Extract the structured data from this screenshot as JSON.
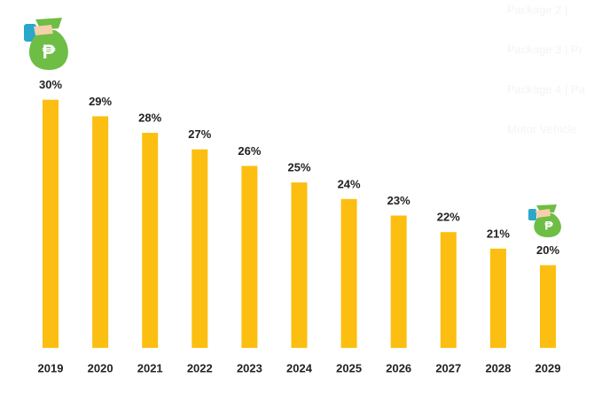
{
  "chart_data": {
    "type": "bar",
    "categories": [
      "2019",
      "2020",
      "2021",
      "2022",
      "2023",
      "2024",
      "2025",
      "2026",
      "2027",
      "2028",
      "2029"
    ],
    "values": [
      30,
      29,
      28,
      27,
      26,
      25,
      24,
      23,
      22,
      21,
      20
    ],
    "value_labels": [
      "30%",
      "29%",
      "28%",
      "27%",
      "26%",
      "25%",
      "24%",
      "23%",
      "22%",
      "21%",
      "20%"
    ],
    "color": "#fcbf11",
    "ylim": [
      15,
      31
    ],
    "background_labels": [
      "Package 2 |",
      "Package 3 | Pr",
      "Package 4 | Pa",
      "Motor Vehicle"
    ]
  }
}
